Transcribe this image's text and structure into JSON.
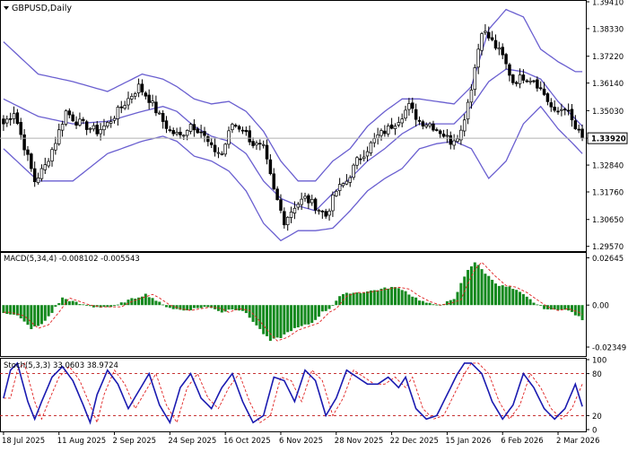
{
  "symbol_label": "GBPUSD,Daily",
  "colors": {
    "bollinger": "#6a5fd0",
    "candle": "#000000",
    "current_line": "#b0b0b0",
    "macd_hist": "#14891e",
    "macd_signal": "#e02020",
    "stoch_main": "#1a1ab0",
    "stoch_signal": "#e02020",
    "level": "#c01818",
    "border": "#000000",
    "price_tag_bg": "#ffffff"
  },
  "chart_data": [
    {
      "type": "candlestick",
      "title": "GBPUSD,Daily",
      "current_price_label": "1.33920",
      "current_price": 1.3392,
      "ylim": [
        1.2945,
        1.3941
      ],
      "y_ticks": [
        "1.39410",
        "1.38330",
        "1.37220",
        "1.36140",
        "1.35030",
        "1.33920",
        "1.32840",
        "1.31760",
        "1.30650",
        "1.29570"
      ],
      "y_tick_values": [
        1.3941,
        1.3833,
        1.3722,
        1.3614,
        1.3503,
        1.3392,
        1.3284,
        1.3176,
        1.3065,
        1.2957
      ],
      "x_tick_labels": [
        "18 Jul 2025",
        "11 Aug 2025",
        "2 Sep 2025",
        "24 Sep 2025",
        "16 Oct 2025",
        "6 Nov 2025",
        "28 Nov 2025",
        "22 Dec 2025",
        "15 Jan 2026",
        "6 Feb 2026",
        "2 Mar 2026"
      ],
      "x_tick_index": [
        0,
        16,
        32,
        48,
        64,
        80,
        96,
        112,
        128,
        144,
        160
      ],
      "close_anchors": [
        [
          0,
          1.345
        ],
        [
          3,
          1.35
        ],
        [
          6,
          1.336
        ],
        [
          9,
          1.322
        ],
        [
          12,
          1.328
        ],
        [
          15,
          1.338
        ],
        [
          18,
          1.35
        ],
        [
          21,
          1.346
        ],
        [
          24,
          1.344
        ],
        [
          27,
          1.342
        ],
        [
          30,
          1.345
        ],
        [
          33,
          1.35
        ],
        [
          36,
          1.355
        ],
        [
          39,
          1.36
        ],
        [
          42,
          1.355
        ],
        [
          45,
          1.348
        ],
        [
          48,
          1.342
        ],
        [
          51,
          1.34
        ],
        [
          54,
          1.345
        ],
        [
          57,
          1.342
        ],
        [
          60,
          1.335
        ],
        [
          63,
          1.333
        ],
        [
          66,
          1.345
        ],
        [
          69,
          1.343
        ],
        [
          72,
          1.337
        ],
        [
          75,
          1.335
        ],
        [
          78,
          1.318
        ],
        [
          81,
          1.306
        ],
        [
          84,
          1.312
        ],
        [
          87,
          1.315
        ],
        [
          90,
          1.312
        ],
        [
          93,
          1.308
        ],
        [
          96,
          1.318
        ],
        [
          99,
          1.322
        ],
        [
          102,
          1.33
        ],
        [
          105,
          1.335
        ],
        [
          108,
          1.34
        ],
        [
          111,
          1.343
        ],
        [
          114,
          1.347
        ],
        [
          117,
          1.352
        ],
        [
          120,
          1.346
        ],
        [
          123,
          1.345
        ],
        [
          126,
          1.342
        ],
        [
          129,
          1.338
        ],
        [
          132,
          1.342
        ],
        [
          135,
          1.36
        ],
        [
          138,
          1.383
        ],
        [
          141,
          1.378
        ],
        [
          144,
          1.372
        ],
        [
          147,
          1.362
        ],
        [
          150,
          1.364
        ],
        [
          153,
          1.363
        ],
        [
          156,
          1.357
        ],
        [
          159,
          1.349
        ],
        [
          162,
          1.352
        ],
        [
          165,
          1.343
        ],
        [
          167,
          1.3392
        ]
      ],
      "bollinger": [
        {
          "name": "upper",
          "points": [
            [
              0,
              1.378
            ],
            [
              10,
              1.365
            ],
            [
              20,
              1.362
            ],
            [
              30,
              1.358
            ],
            [
              40,
              1.365
            ],
            [
              46,
              1.363
            ],
            [
              50,
              1.36
            ],
            [
              55,
              1.355
            ],
            [
              60,
              1.353
            ],
            [
              65,
              1.354
            ],
            [
              70,
              1.35
            ],
            [
              75,
              1.342
            ],
            [
              80,
              1.33
            ],
            [
              85,
              1.322
            ],
            [
              90,
              1.322
            ],
            [
              95,
              1.33
            ],
            [
              100,
              1.335
            ],
            [
              105,
              1.344
            ],
            [
              110,
              1.35
            ],
            [
              115,
              1.355
            ],
            [
              120,
              1.355
            ],
            [
              125,
              1.354
            ],
            [
              130,
              1.353
            ],
            [
              135,
              1.36
            ],
            [
              140,
              1.383
            ],
            [
              145,
              1.391
            ],
            [
              150,
              1.388
            ],
            [
              155,
              1.375
            ],
            [
              160,
              1.37
            ],
            [
              165,
              1.366
            ]
          ]
        },
        {
          "name": "middle",
          "points": [
            [
              0,
              1.355
            ],
            [
              10,
              1.348
            ],
            [
              20,
              1.345
            ],
            [
              30,
              1.346
            ],
            [
              40,
              1.35
            ],
            [
              46,
              1.352
            ],
            [
              50,
              1.35
            ],
            [
              55,
              1.344
            ],
            [
              60,
              1.34
            ],
            [
              65,
              1.338
            ],
            [
              70,
              1.333
            ],
            [
              75,
              1.322
            ],
            [
              80,
              1.315
            ],
            [
              85,
              1.312
            ],
            [
              90,
              1.31
            ],
            [
              95,
              1.317
            ],
            [
              100,
              1.323
            ],
            [
              105,
              1.33
            ],
            [
              110,
              1.335
            ],
            [
              115,
              1.341
            ],
            [
              120,
              1.345
            ],
            [
              125,
              1.345
            ],
            [
              130,
              1.345
            ],
            [
              135,
              1.352
            ],
            [
              140,
              1.362
            ],
            [
              145,
              1.367
            ],
            [
              150,
              1.366
            ],
            [
              155,
              1.363
            ],
            [
              160,
              1.354
            ],
            [
              165,
              1.347
            ],
            [
              167,
              1.344
            ]
          ]
        },
        {
          "name": "lower",
          "points": [
            [
              0,
              1.335
            ],
            [
              10,
              1.322
            ],
            [
              20,
              1.322
            ],
            [
              30,
              1.333
            ],
            [
              40,
              1.338
            ],
            [
              46,
              1.34
            ],
            [
              50,
              1.338
            ],
            [
              55,
              1.332
            ],
            [
              60,
              1.33
            ],
            [
              65,
              1.326
            ],
            [
              70,
              1.318
            ],
            [
              75,
              1.305
            ],
            [
              80,
              1.298
            ],
            [
              85,
              1.302
            ],
            [
              90,
              1.302
            ],
            [
              95,
              1.303
            ],
            [
              100,
              1.31
            ],
            [
              105,
              1.318
            ],
            [
              110,
              1.323
            ],
            [
              115,
              1.327
            ],
            [
              120,
              1.335
            ],
            [
              125,
              1.337
            ],
            [
              130,
              1.338
            ],
            [
              135,
              1.335
            ],
            [
              140,
              1.323
            ],
            [
              145,
              1.33
            ],
            [
              150,
              1.345
            ],
            [
              155,
              1.352
            ],
            [
              160,
              1.343
            ],
            [
              165,
              1.336
            ],
            [
              167,
              1.333
            ]
          ]
        }
      ]
    },
    {
      "type": "bar",
      "title": "MACD(5,34,4) -0.008102 -0.005543",
      "ylim": [
        -0.0275,
        0.0287
      ],
      "y_ticks": [
        "0.02645",
        "0.00",
        "-0.02349"
      ],
      "y_tick_values": [
        0.02645,
        0.0,
        -0.02349
      ],
      "hist_anchors": [
        [
          0,
          -0.004
        ],
        [
          4,
          -0.006
        ],
        [
          8,
          -0.013
        ],
        [
          11,
          -0.011
        ],
        [
          14,
          -0.004
        ],
        [
          17,
          0.004
        ],
        [
          20,
          0.002
        ],
        [
          23,
          0.0
        ],
        [
          26,
          -0.001
        ],
        [
          29,
          -0.001
        ],
        [
          32,
          -0.001
        ],
        [
          35,
          0.002
        ],
        [
          38,
          0.004
        ],
        [
          41,
          0.006
        ],
        [
          43,
          0.004
        ],
        [
          46,
          0.0
        ],
        [
          49,
          -0.002
        ],
        [
          52,
          -0.003
        ],
        [
          55,
          -0.002
        ],
        [
          58,
          -0.001
        ],
        [
          61,
          -0.002
        ],
        [
          63,
          -0.004
        ],
        [
          66,
          -0.002
        ],
        [
          69,
          -0.003
        ],
        [
          72,
          -0.009
        ],
        [
          75,
          -0.016
        ],
        [
          77,
          -0.02
        ],
        [
          80,
          -0.018
        ],
        [
          83,
          -0.014
        ],
        [
          86,
          -0.012
        ],
        [
          89,
          -0.01
        ],
        [
          92,
          -0.004
        ],
        [
          94,
          -0.002
        ],
        [
          97,
          0.005
        ],
        [
          100,
          0.007
        ],
        [
          103,
          0.007
        ],
        [
          106,
          0.008
        ],
        [
          109,
          0.009
        ],
        [
          112,
          0.01
        ],
        [
          115,
          0.009
        ],
        [
          118,
          0.005
        ],
        [
          121,
          0.002
        ],
        [
          124,
          0.0
        ],
        [
          127,
          0.001
        ],
        [
          130,
          0.003
        ],
        [
          132,
          0.012
        ],
        [
          134,
          0.02
        ],
        [
          136,
          0.024
        ],
        [
          138,
          0.02
        ],
        [
          140,
          0.016
        ],
        [
          143,
          0.011
        ],
        [
          146,
          0.01
        ],
        [
          149,
          0.007
        ],
        [
          152,
          0.003
        ],
        [
          155,
          -0.001
        ],
        [
          158,
          -0.003
        ],
        [
          161,
          -0.002
        ],
        [
          164,
          -0.004
        ],
        [
          167,
          -0.008102
        ]
      ],
      "signal_lag": 2
    },
    {
      "type": "line",
      "title": "Stoch(5,3,3) 33.0603 38.9724",
      "ylim": [
        0,
        100
      ],
      "y_ticks": [
        "100",
        "80",
        "20",
        "0"
      ],
      "y_tick_values": [
        100,
        80,
        20,
        0
      ],
      "level_lines": [
        80,
        20
      ],
      "stoch_anchors": [
        [
          0,
          45
        ],
        [
          2,
          85
        ],
        [
          4,
          95
        ],
        [
          7,
          40
        ],
        [
          9,
          15
        ],
        [
          11,
          40
        ],
        [
          14,
          75
        ],
        [
          17,
          90
        ],
        [
          20,
          70
        ],
        [
          23,
          35
        ],
        [
          25,
          10
        ],
        [
          27,
          50
        ],
        [
          30,
          85
        ],
        [
          33,
          65
        ],
        [
          36,
          30
        ],
        [
          39,
          55
        ],
        [
          42,
          80
        ],
        [
          45,
          35
        ],
        [
          48,
          10
        ],
        [
          51,
          60
        ],
        [
          54,
          80
        ],
        [
          57,
          45
        ],
        [
          60,
          30
        ],
        [
          63,
          60
        ],
        [
          66,
          80
        ],
        [
          69,
          40
        ],
        [
          72,
          10
        ],
        [
          75,
          20
        ],
        [
          78,
          75
        ],
        [
          81,
          70
        ],
        [
          84,
          40
        ],
        [
          87,
          85
        ],
        [
          90,
          70
        ],
        [
          93,
          20
        ],
        [
          96,
          45
        ],
        [
          99,
          85
        ],
        [
          102,
          75
        ],
        [
          105,
          65
        ],
        [
          108,
          65
        ],
        [
          111,
          75
        ],
        [
          114,
          60
        ],
        [
          116,
          75
        ],
        [
          119,
          30
        ],
        [
          122,
          15
        ],
        [
          125,
          20
        ],
        [
          128,
          50
        ],
        [
          131,
          80
        ],
        [
          133,
          95
        ],
        [
          135,
          95
        ],
        [
          138,
          80
        ],
        [
          141,
          40
        ],
        [
          144,
          15
        ],
        [
          147,
          35
        ],
        [
          150,
          80
        ],
        [
          153,
          60
        ],
        [
          156,
          30
        ],
        [
          159,
          15
        ],
        [
          162,
          30
        ],
        [
          165,
          65
        ],
        [
          167,
          33.06
        ]
      ],
      "signal_lag": 2
    }
  ]
}
